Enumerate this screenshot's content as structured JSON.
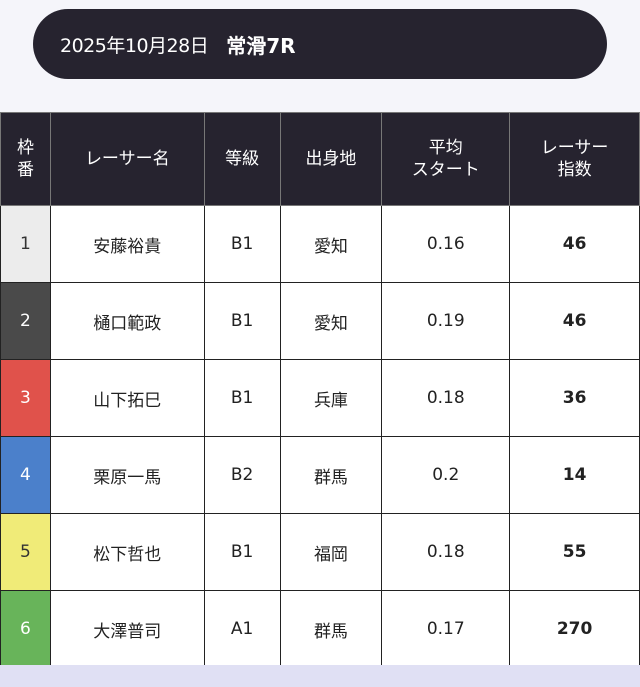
{
  "header": {
    "date": "2025年10月28日",
    "race": "常滑7R"
  },
  "columns": [
    "枠番",
    "レーサー名",
    "等級",
    "出身地",
    "平均スタート",
    "レーサー指数"
  ],
  "column_lines": [
    [
      "枠",
      "番"
    ],
    [
      "レーサー名"
    ],
    [
      "等級"
    ],
    [
      "出身地"
    ],
    [
      "平均",
      "スタート"
    ],
    [
      "レーサー",
      "指数"
    ]
  ],
  "rows": [
    {
      "frame": "1",
      "name": "安藤裕貴",
      "grade": "B1",
      "hometown": "愛知",
      "avg_start": "0.16",
      "index": "46",
      "color": "#ececec",
      "text_color": "#333333"
    },
    {
      "frame": "2",
      "name": "樋口範政",
      "grade": "B1",
      "hometown": "愛知",
      "avg_start": "0.19",
      "index": "46",
      "color": "#4a4a4a",
      "text_color": "#ffffff"
    },
    {
      "frame": "3",
      "name": "山下拓巳",
      "grade": "B1",
      "hometown": "兵庫",
      "avg_start": "0.18",
      "index": "36",
      "color": "#e0524b",
      "text_color": "#ffffff"
    },
    {
      "frame": "4",
      "name": "栗原一馬",
      "grade": "B2",
      "hometown": "群馬",
      "avg_start": "0.2",
      "index": "14",
      "color": "#4b80cb",
      "text_color": "#ffffff"
    },
    {
      "frame": "5",
      "name": "松下哲也",
      "grade": "B1",
      "hometown": "福岡",
      "avg_start": "0.18",
      "index": "55",
      "color": "#f0eb78",
      "text_color": "#333333"
    },
    {
      "frame": "6",
      "name": "大澤普司",
      "grade": "A1",
      "hometown": "群馬",
      "avg_start": "0.17",
      "index": "270",
      "color": "#68b45a",
      "text_color": "#ffffff"
    }
  ]
}
